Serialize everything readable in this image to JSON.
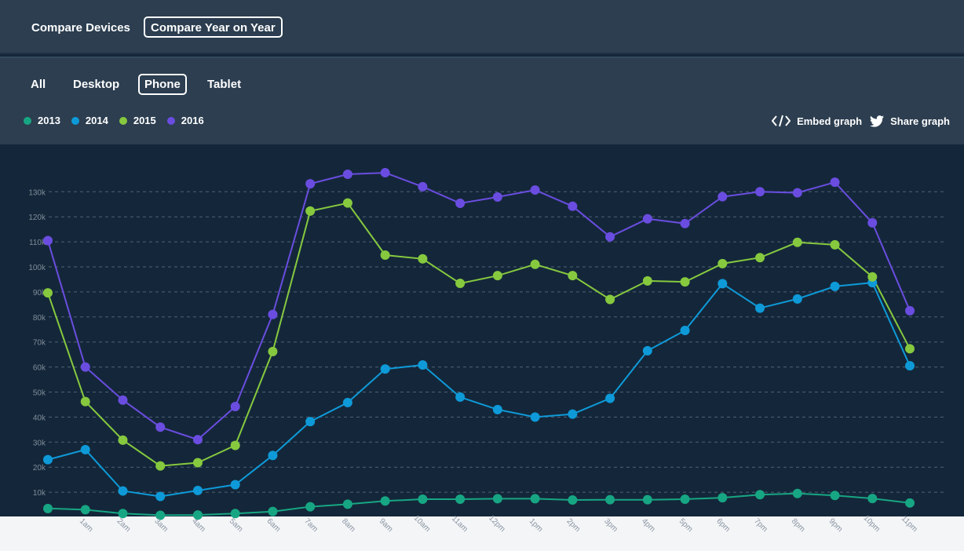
{
  "view_tabs": [
    {
      "label": "Compare Devices",
      "active": false
    },
    {
      "label": "Compare Year on Year",
      "active": true
    }
  ],
  "device_tabs": [
    {
      "label": "All",
      "active": false
    },
    {
      "label": "Desktop",
      "active": false
    },
    {
      "label": "Phone",
      "active": true
    },
    {
      "label": "Tablet",
      "active": false
    }
  ],
  "actions": {
    "embed_label": "Embed graph",
    "embed_icon": "code-icon",
    "share_label": "Share graph",
    "share_icon": "twitter-bird-icon"
  },
  "colors": {
    "2013": "#17a683",
    "2014": "#0e9ad8",
    "2015": "#86c93f",
    "2016": "#6a4de0",
    "background": "#14273a",
    "panel": "#2c3e50"
  },
  "chart_data": {
    "type": "line",
    "title": "",
    "xlabel": "",
    "ylabel": "",
    "x": [
      "",
      "1am",
      "2am",
      "3am",
      "4am",
      "5am",
      "6am",
      "7am",
      "8am",
      "9am",
      "10am",
      "11am",
      "12pm",
      "1pm",
      "2pm",
      "3pm",
      "4pm",
      "5pm",
      "6pm",
      "7pm",
      "8pm",
      "9pm",
      "10pm",
      "11pm"
    ],
    "y_ticks": [
      "10k",
      "20k",
      "30k",
      "40k",
      "50k",
      "60k",
      "70k",
      "80k",
      "90k",
      "100k",
      "110k",
      "120k",
      "130k"
    ],
    "ylim": [
      0,
      140000
    ],
    "grid": true,
    "legend_position": "top-left",
    "series": [
      {
        "name": "2013",
        "values": [
          3500,
          3000,
          1500,
          800,
          900,
          1500,
          2300,
          4200,
          5200,
          6500,
          7200,
          7200,
          7400,
          7400,
          6900,
          7000,
          7000,
          7200,
          7800,
          9000,
          9500,
          8700,
          7500,
          5700
        ]
      },
      {
        "name": "2014",
        "values": [
          23000,
          27000,
          10500,
          8300,
          10700,
          13000,
          24700,
          38200,
          45800,
          59200,
          60800,
          48000,
          43000,
          40000,
          41200,
          47500,
          66500,
          74600,
          93300,
          83500,
          87200,
          92200,
          93700,
          60500
        ]
      },
      {
        "name": "2015",
        "values": [
          89600,
          46200,
          30800,
          20500,
          21800,
          28700,
          66200,
          122300,
          125500,
          104700,
          103200,
          93400,
          96500,
          101000,
          96500,
          87000,
          94400,
          94000,
          101300,
          103700,
          109800,
          108800,
          96000,
          67300
        ]
      },
      {
        "name": "2016",
        "values": [
          110500,
          60000,
          46800,
          36000,
          31000,
          44200,
          81000,
          133200,
          137000,
          137600,
          132000,
          125400,
          127900,
          130700,
          124200,
          112000,
          119200,
          117300,
          128000,
          130000,
          129600,
          133800,
          117600,
          82500
        ]
      }
    ]
  }
}
